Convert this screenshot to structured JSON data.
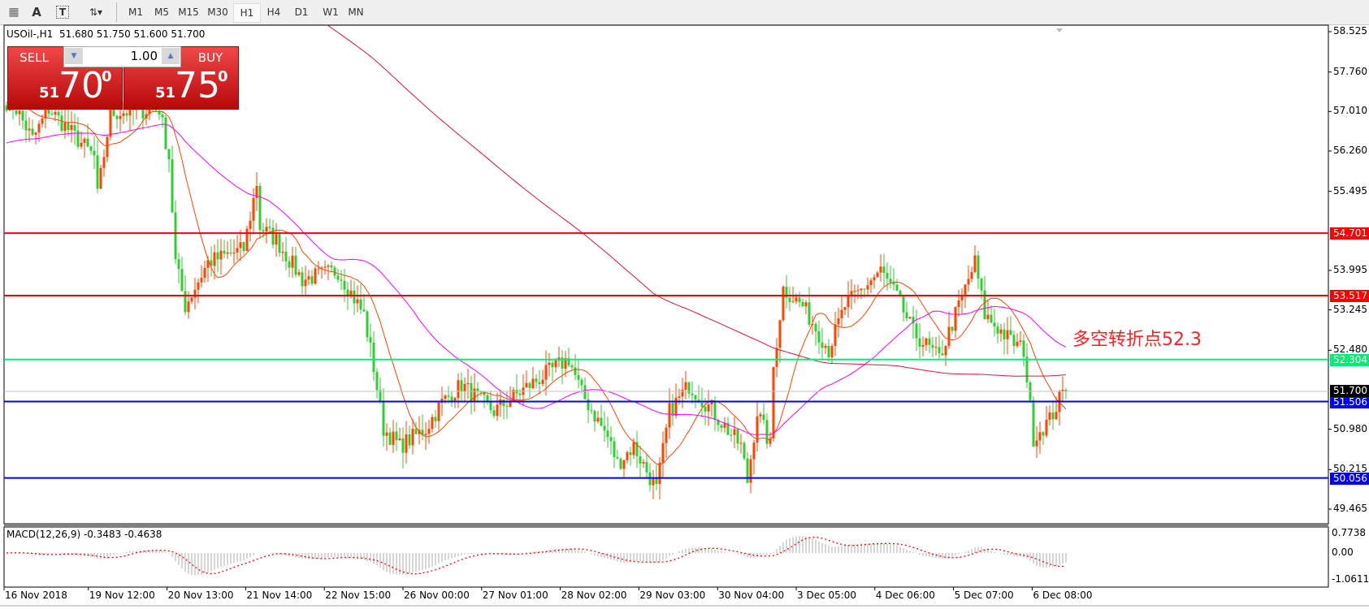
{
  "toolbar": {
    "icons": [
      "grid-icon",
      "text-icon",
      "text-label-icon",
      "arrows-icon"
    ],
    "text_icon_label": "A",
    "timeframes": [
      "M1",
      "M5",
      "M15",
      "M30",
      "H1",
      "H4",
      "D1",
      "W1",
      "MN"
    ],
    "selected_timeframe": "H1"
  },
  "chart": {
    "title": "USOil-,H1  51.680 51.750 51.600 51.700",
    "annotation": "多空转折点52.3",
    "colors": {
      "bull": "#ff4500",
      "bear": "#32cd32",
      "ma_fast": "#ff4500",
      "ma_mid": "#ff00ff",
      "ma_slow": "#dc143c",
      "macd_hist": "#c0c0c0",
      "macd_signal": "#ff0000"
    },
    "y_axis": {
      "min": 49.465,
      "max": 58.525,
      "ticks": [
        "58.525",
        "57.760",
        "57.010",
        "56.260",
        "55.495",
        "53.995",
        "53.245",
        "52.480",
        "50.980",
        "50.215",
        "49.465"
      ]
    },
    "levels": [
      {
        "price": 54.701,
        "label": "54.701",
        "color": "#ff0000"
      },
      {
        "price": 53.517,
        "label": "53.517",
        "color": "#ff0000"
      },
      {
        "price": 52.304,
        "label": "52.304",
        "color": "#00ee76"
      },
      {
        "price": 51.506,
        "label": "51.506",
        "color": "#0000ff"
      },
      {
        "price": 50.056,
        "label": "50.056",
        "color": "#0000ff"
      }
    ],
    "current_price": {
      "price": 51.7,
      "label": "51.700"
    },
    "x_axis_labels": [
      "16 Nov 2018",
      "19 Nov 12:00",
      "20 Nov 13:00",
      "21 Nov 14:00",
      "22 Nov 15:00",
      "26 Nov 00:00",
      "27 Nov 01:00",
      "28 Nov 02:00",
      "29 Nov 03:00",
      "30 Nov 04:00",
      "3 Dec 05:00",
      "4 Dec 06:00",
      "5 Dec 07:00",
      "6 Dec 08:00"
    ],
    "price_path": [
      [
        0,
        57.2
      ],
      [
        3,
        57.06
      ],
      [
        8,
        56.48
      ],
      [
        13,
        57.06
      ],
      [
        27,
        56.15
      ],
      [
        28,
        55.4
      ],
      [
        32,
        56.98
      ],
      [
        47,
        57.06
      ],
      [
        50,
        56.15
      ],
      [
        52,
        54.15
      ],
      [
        55,
        53.32
      ],
      [
        62,
        54.15
      ],
      [
        73,
        54.4
      ],
      [
        77,
        55.65
      ],
      [
        78,
        54.82
      ],
      [
        83,
        54.57
      ],
      [
        91,
        53.82
      ],
      [
        102,
        53.99
      ],
      [
        110,
        53.15
      ],
      [
        113,
        52.16
      ],
      [
        116,
        50.99
      ],
      [
        121,
        50.66
      ],
      [
        129,
        50.99
      ],
      [
        134,
        51.49
      ],
      [
        140,
        51.82
      ],
      [
        150,
        51.32
      ],
      [
        161,
        51.82
      ],
      [
        173,
        52.32
      ],
      [
        177,
        51.66
      ],
      [
        185,
        50.83
      ],
      [
        188,
        50.33
      ],
      [
        193,
        50.66
      ],
      [
        200,
        49.83
      ],
      [
        204,
        51.32
      ],
      [
        210,
        51.82
      ],
      [
        215,
        51.49
      ],
      [
        226,
        50.66
      ],
      [
        228,
        50.0
      ],
      [
        231,
        51.32
      ],
      [
        235,
        50.66
      ],
      [
        236,
        52.16
      ],
      [
        239,
        53.65
      ],
      [
        245,
        53.32
      ],
      [
        253,
        52.49
      ],
      [
        258,
        53.32
      ],
      [
        269,
        53.99
      ],
      [
        274,
        53.49
      ],
      [
        279,
        52.82
      ],
      [
        287,
        52.32
      ],
      [
        293,
        53.32
      ],
      [
        298,
        54.15
      ],
      [
        301,
        53.15
      ],
      [
        309,
        52.66
      ],
      [
        313,
        52.49
      ],
      [
        316,
        50.83
      ],
      [
        321,
        51.16
      ],
      [
        325,
        51.66
      ],
      [
        326,
        51.7
      ]
    ]
  },
  "trade_panel": {
    "sell_label": "SELL",
    "buy_label": "BUY",
    "volume": "1.00",
    "sell_price": {
      "big_figure": "51",
      "pips": "70",
      "fraction": "0"
    },
    "buy_price": {
      "big_figure": "51",
      "pips": "75",
      "fraction": "0"
    }
  },
  "macd": {
    "label": "MACD(12,26,9) -0.3483 -0.4638",
    "ticks": [
      "0.7738",
      "0.00",
      "-1.0611"
    ]
  }
}
